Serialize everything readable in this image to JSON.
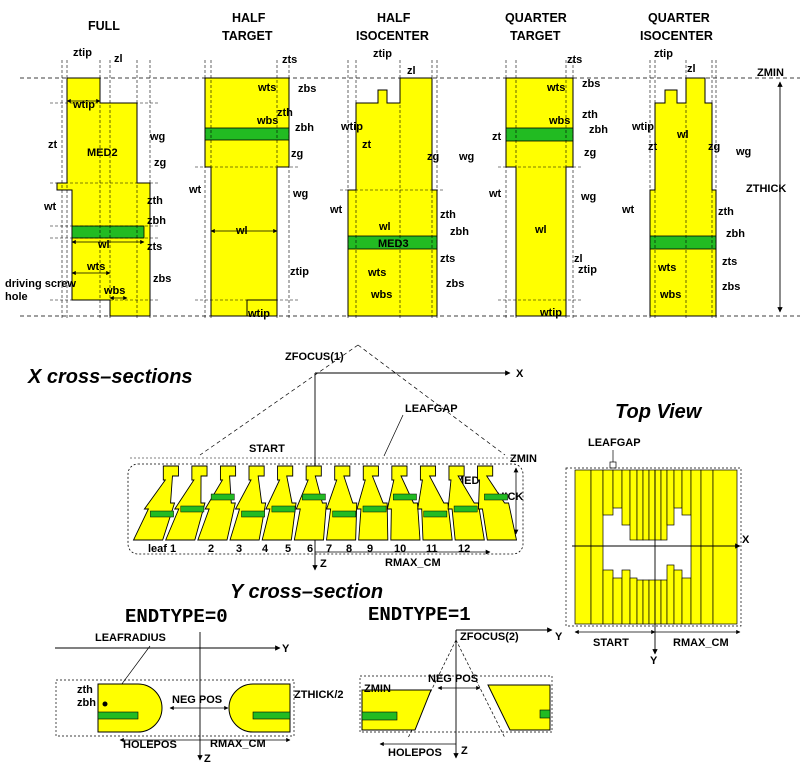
{
  "colors": {
    "leaf": "#ffff00",
    "hole": "#22bb22",
    "line": "#000000"
  },
  "leaf_types": {
    "full": {
      "title": "FULL"
    },
    "half_target": {
      "title_line1": "HALF",
      "title_line2": "TARGET"
    },
    "half_isocenter": {
      "title_line1": "HALF",
      "title_line2": "ISOCENTER"
    },
    "quarter_target": {
      "title_line1": "QUARTER",
      "title_line2": "TARGET"
    },
    "quarter_isocenter": {
      "title_line1": "QUARTER",
      "title_line2": "ISOCENTER"
    }
  },
  "labels": {
    "ztip": "ztip",
    "zl": "zl",
    "wtip": "wtip",
    "zt": "zt",
    "wg": "wg",
    "zg": "zg",
    "wt": "wt",
    "zth": "zth",
    "zbh": "zbh",
    "wl": "wl",
    "zts": "zts",
    "wts": "wts",
    "wbs": "wbs",
    "zbs": "zbs",
    "med2": "MED2",
    "med3": "MED3",
    "driving_screw_hole_1": "driving screw",
    "driving_screw_hole_2": "hole",
    "zmin": "ZMIN",
    "zthick": "ZTHICK"
  },
  "x_section": {
    "title": "X cross–sections",
    "zfocus": "ZFOCUS(1)",
    "x_axis": "X",
    "z_axis": "Z",
    "leafgap": "LEAFGAP",
    "start": "START",
    "zmin": "ZMIN",
    "med1": "MED1",
    "zthick": "ZTHICK",
    "rmax": "RMAX_CM",
    "leaf_numbers": [
      "leaf 1",
      "2",
      "3",
      "4",
      "5",
      "6",
      "7",
      "8",
      "9",
      "10",
      "11",
      "12"
    ]
  },
  "top_view": {
    "title": "Top View",
    "leafgap": "LEAFGAP",
    "x_axis": "X",
    "y_axis": "Y",
    "start": "START",
    "rmax": "RMAX_CM"
  },
  "y_section": {
    "title": "Y cross–section",
    "endtype0": "ENDTYPE=0",
    "endtype1": "ENDTYPE=1",
    "leafradius": "LEAFRADIUS",
    "y_axis": "Y",
    "z_axis": "Z",
    "zth": "zth",
    "zbh": "zbh",
    "neg_pos": "NEG POS",
    "zthick_half": "ZTHICK/2",
    "holepos": "HOLEPOS",
    "rmax": "RMAX_CM",
    "zfocus2": "ZFOCUS(2)",
    "zmin": "ZMIN"
  }
}
